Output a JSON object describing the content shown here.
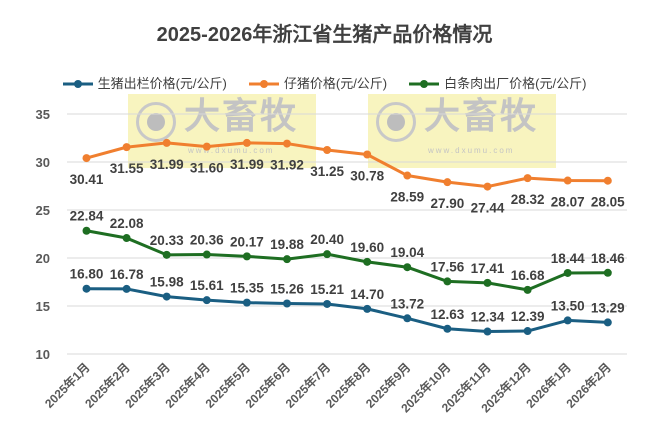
{
  "chart_data": {
    "type": "line",
    "title": "2025-2026年浙江省生猪产品价格情况",
    "categories": [
      "2025年1月",
      "2025年2月",
      "2025年3月",
      "2025年4月",
      "2025年5月",
      "2025年6月",
      "2025年7月",
      "2025年8月",
      "2025年9月",
      "2025年10月",
      "2025年11月",
      "2025年12月",
      "2026年1月",
      "2026年2月"
    ],
    "series": [
      {
        "name": "生猪出栏价格(元/公斤)",
        "color": "#1a5e82",
        "label_pos": "above",
        "values": [
          16.8,
          16.78,
          15.98,
          15.61,
          15.35,
          15.26,
          15.21,
          14.7,
          13.72,
          12.63,
          12.34,
          12.39,
          13.5,
          13.29
        ]
      },
      {
        "name": "仔猪价格(元/公斤)",
        "color": "#f07f2f",
        "label_pos": "below",
        "values": [
          30.41,
          31.55,
          31.99,
          31.6,
          31.99,
          31.92,
          31.25,
          30.78,
          28.59,
          27.9,
          27.44,
          28.32,
          28.07,
          28.05
        ]
      },
      {
        "name": "白条肉出厂价格(元/公斤)",
        "color": "#1e6e22",
        "label_pos": "above",
        "values": [
          22.84,
          22.08,
          20.33,
          20.36,
          20.17,
          19.88,
          20.4,
          19.6,
          19.04,
          17.56,
          17.41,
          16.68,
          18.44,
          18.46
        ]
      }
    ],
    "ylim": [
      10,
      35
    ],
    "yticks": [
      10,
      15,
      20,
      25,
      30,
      35
    ],
    "grid": true,
    "legend": "top",
    "xlabel": "",
    "ylabel": ""
  },
  "watermark": {
    "text": "大畜牧",
    "url": "www.dxumu.com"
  }
}
